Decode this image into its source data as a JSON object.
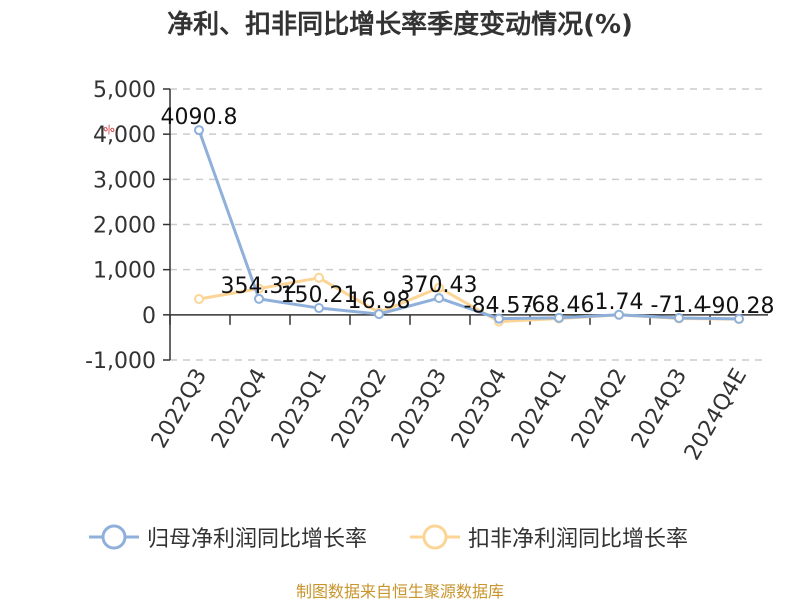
{
  "title": "净利、扣非同比增长率季度变动情况(%)",
  "source": "制图数据来自恒生聚源数据库",
  "chart_data": {
    "type": "line",
    "title": "净利、扣非同比增长率季度变动情况(%)",
    "ylabel": "%",
    "ylim": [
      -1000,
      5000
    ],
    "yticks": [
      -1000,
      0,
      1000,
      2000,
      3000,
      4000,
      5000
    ],
    "ytick_labels": [
      "-1,000",
      "0",
      "1,000",
      "2,000",
      "3,000",
      "4,000",
      "5,000"
    ],
    "grid": "horizontal dashed",
    "legend_position": "bottom",
    "categories": [
      "2022Q3",
      "2022Q4",
      "2023Q1",
      "2023Q2",
      "2023Q3",
      "2023Q4",
      "2024Q1",
      "2024Q2",
      "2024Q3",
      "2024Q4E"
    ],
    "series": [
      {
        "name": "归母净利润同比增长率",
        "color": "#8fb0db",
        "values": [
          4090.8,
          354.32,
          150.21,
          16.98,
          370.43,
          -84.57,
          -68.46,
          1.74,
          -71.4,
          -90.28
        ],
        "labels": [
          "4090.8",
          "354.32",
          "150.21",
          "16.98",
          "370.43",
          "-84.57",
          "-68.46",
          "1.74",
          "-71.4",
          "-90.28"
        ]
      },
      {
        "name": "扣非净利润同比增长率",
        "color": "#fcd596",
        "values": [
          350,
          580,
          820,
          50,
          600,
          -150,
          -80,
          0,
          -80,
          -95
        ]
      }
    ]
  }
}
